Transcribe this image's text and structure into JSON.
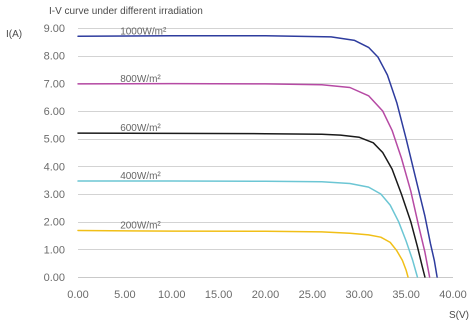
{
  "chart_data": {
    "type": "line",
    "title": "I-V curve under different irradiation",
    "xlabel": "S(V)",
    "ylabel": "I(A)",
    "xlim": [
      0,
      40
    ],
    "ylim": [
      0,
      9
    ],
    "grid": true,
    "x_ticks": [
      {
        "value": 0,
        "label": "0.00"
      },
      {
        "value": 5,
        "label": "5.00"
      },
      {
        "value": 10,
        "label": "10.00"
      },
      {
        "value": 15,
        "label": "15.00"
      },
      {
        "value": 20,
        "label": "20.00"
      },
      {
        "value": 25,
        "label": "25.00"
      },
      {
        "value": 30,
        "label": "30.00"
      },
      {
        "value": 35,
        "label": "35.00"
      },
      {
        "value": 40,
        "label": "40.00"
      }
    ],
    "y_ticks": [
      {
        "value": 0,
        "label": "0.00"
      },
      {
        "value": 1,
        "label": "1.00"
      },
      {
        "value": 2,
        "label": "2.00"
      },
      {
        "value": 3,
        "label": "3.00"
      },
      {
        "value": 4,
        "label": "4.00"
      },
      {
        "value": 5,
        "label": "5.00"
      },
      {
        "value": 6,
        "label": "6.00"
      },
      {
        "value": 7,
        "label": "7.00"
      },
      {
        "value": 8,
        "label": "8.00"
      },
      {
        "value": 9,
        "label": "9.00"
      }
    ],
    "series": [
      {
        "name": "1000W/m²",
        "color": "#2e3c9e",
        "points": [
          [
            0,
            8.7
          ],
          [
            10,
            8.72
          ],
          [
            20,
            8.72
          ],
          [
            27,
            8.68
          ],
          [
            29.5,
            8.55
          ],
          [
            31,
            8.3
          ],
          [
            32,
            7.95
          ],
          [
            33,
            7.3
          ],
          [
            34,
            6.3
          ],
          [
            35,
            5.0
          ],
          [
            36,
            3.6
          ],
          [
            37,
            2.2
          ],
          [
            37.6,
            1.2
          ],
          [
            38,
            0.6
          ],
          [
            38.3,
            0
          ]
        ]
      },
      {
        "name": "800W/m²",
        "color": "#b64aa4",
        "points": [
          [
            0,
            6.98
          ],
          [
            10,
            6.99
          ],
          [
            20,
            6.98
          ],
          [
            26,
            6.95
          ],
          [
            29,
            6.85
          ],
          [
            31,
            6.55
          ],
          [
            32.5,
            6.0
          ],
          [
            33.5,
            5.3
          ],
          [
            34.5,
            4.3
          ],
          [
            35.5,
            3.1
          ],
          [
            36.3,
            1.9
          ],
          [
            37,
            0.9
          ],
          [
            37.5,
            0
          ]
        ]
      },
      {
        "name": "600W/m²",
        "color": "#1a1a1a",
        "points": [
          [
            0,
            5.2
          ],
          [
            10,
            5.19
          ],
          [
            20,
            5.18
          ],
          [
            26,
            5.16
          ],
          [
            28,
            5.13
          ],
          [
            30,
            5.05
          ],
          [
            31.5,
            4.85
          ],
          [
            32.5,
            4.5
          ],
          [
            33.5,
            3.9
          ],
          [
            34.5,
            3.0
          ],
          [
            35.5,
            2.0
          ],
          [
            36.2,
            1.1
          ],
          [
            36.7,
            0.4
          ],
          [
            37,
            0
          ]
        ]
      },
      {
        "name": "400W/m²",
        "color": "#6cc6d4",
        "points": [
          [
            0,
            3.47
          ],
          [
            10,
            3.47
          ],
          [
            20,
            3.46
          ],
          [
            26,
            3.44
          ],
          [
            29,
            3.38
          ],
          [
            31,
            3.25
          ],
          [
            32.3,
            3.0
          ],
          [
            33.3,
            2.6
          ],
          [
            34.2,
            2.0
          ],
          [
            35,
            1.3
          ],
          [
            35.7,
            0.6
          ],
          [
            36.2,
            0
          ]
        ]
      },
      {
        "name": "200W/m²",
        "color": "#f1bf17",
        "points": [
          [
            0,
            1.68
          ],
          [
            10,
            1.66
          ],
          [
            20,
            1.65
          ],
          [
            26,
            1.63
          ],
          [
            29,
            1.58
          ],
          [
            31,
            1.52
          ],
          [
            32.3,
            1.44
          ],
          [
            33.3,
            1.25
          ],
          [
            34,
            0.95
          ],
          [
            34.6,
            0.6
          ],
          [
            35,
            0.25
          ],
          [
            35.2,
            0
          ]
        ]
      }
    ],
    "label_anchor_x": [
      4.5,
      4.5,
      4.5,
      4.5,
      4.5
    ]
  }
}
